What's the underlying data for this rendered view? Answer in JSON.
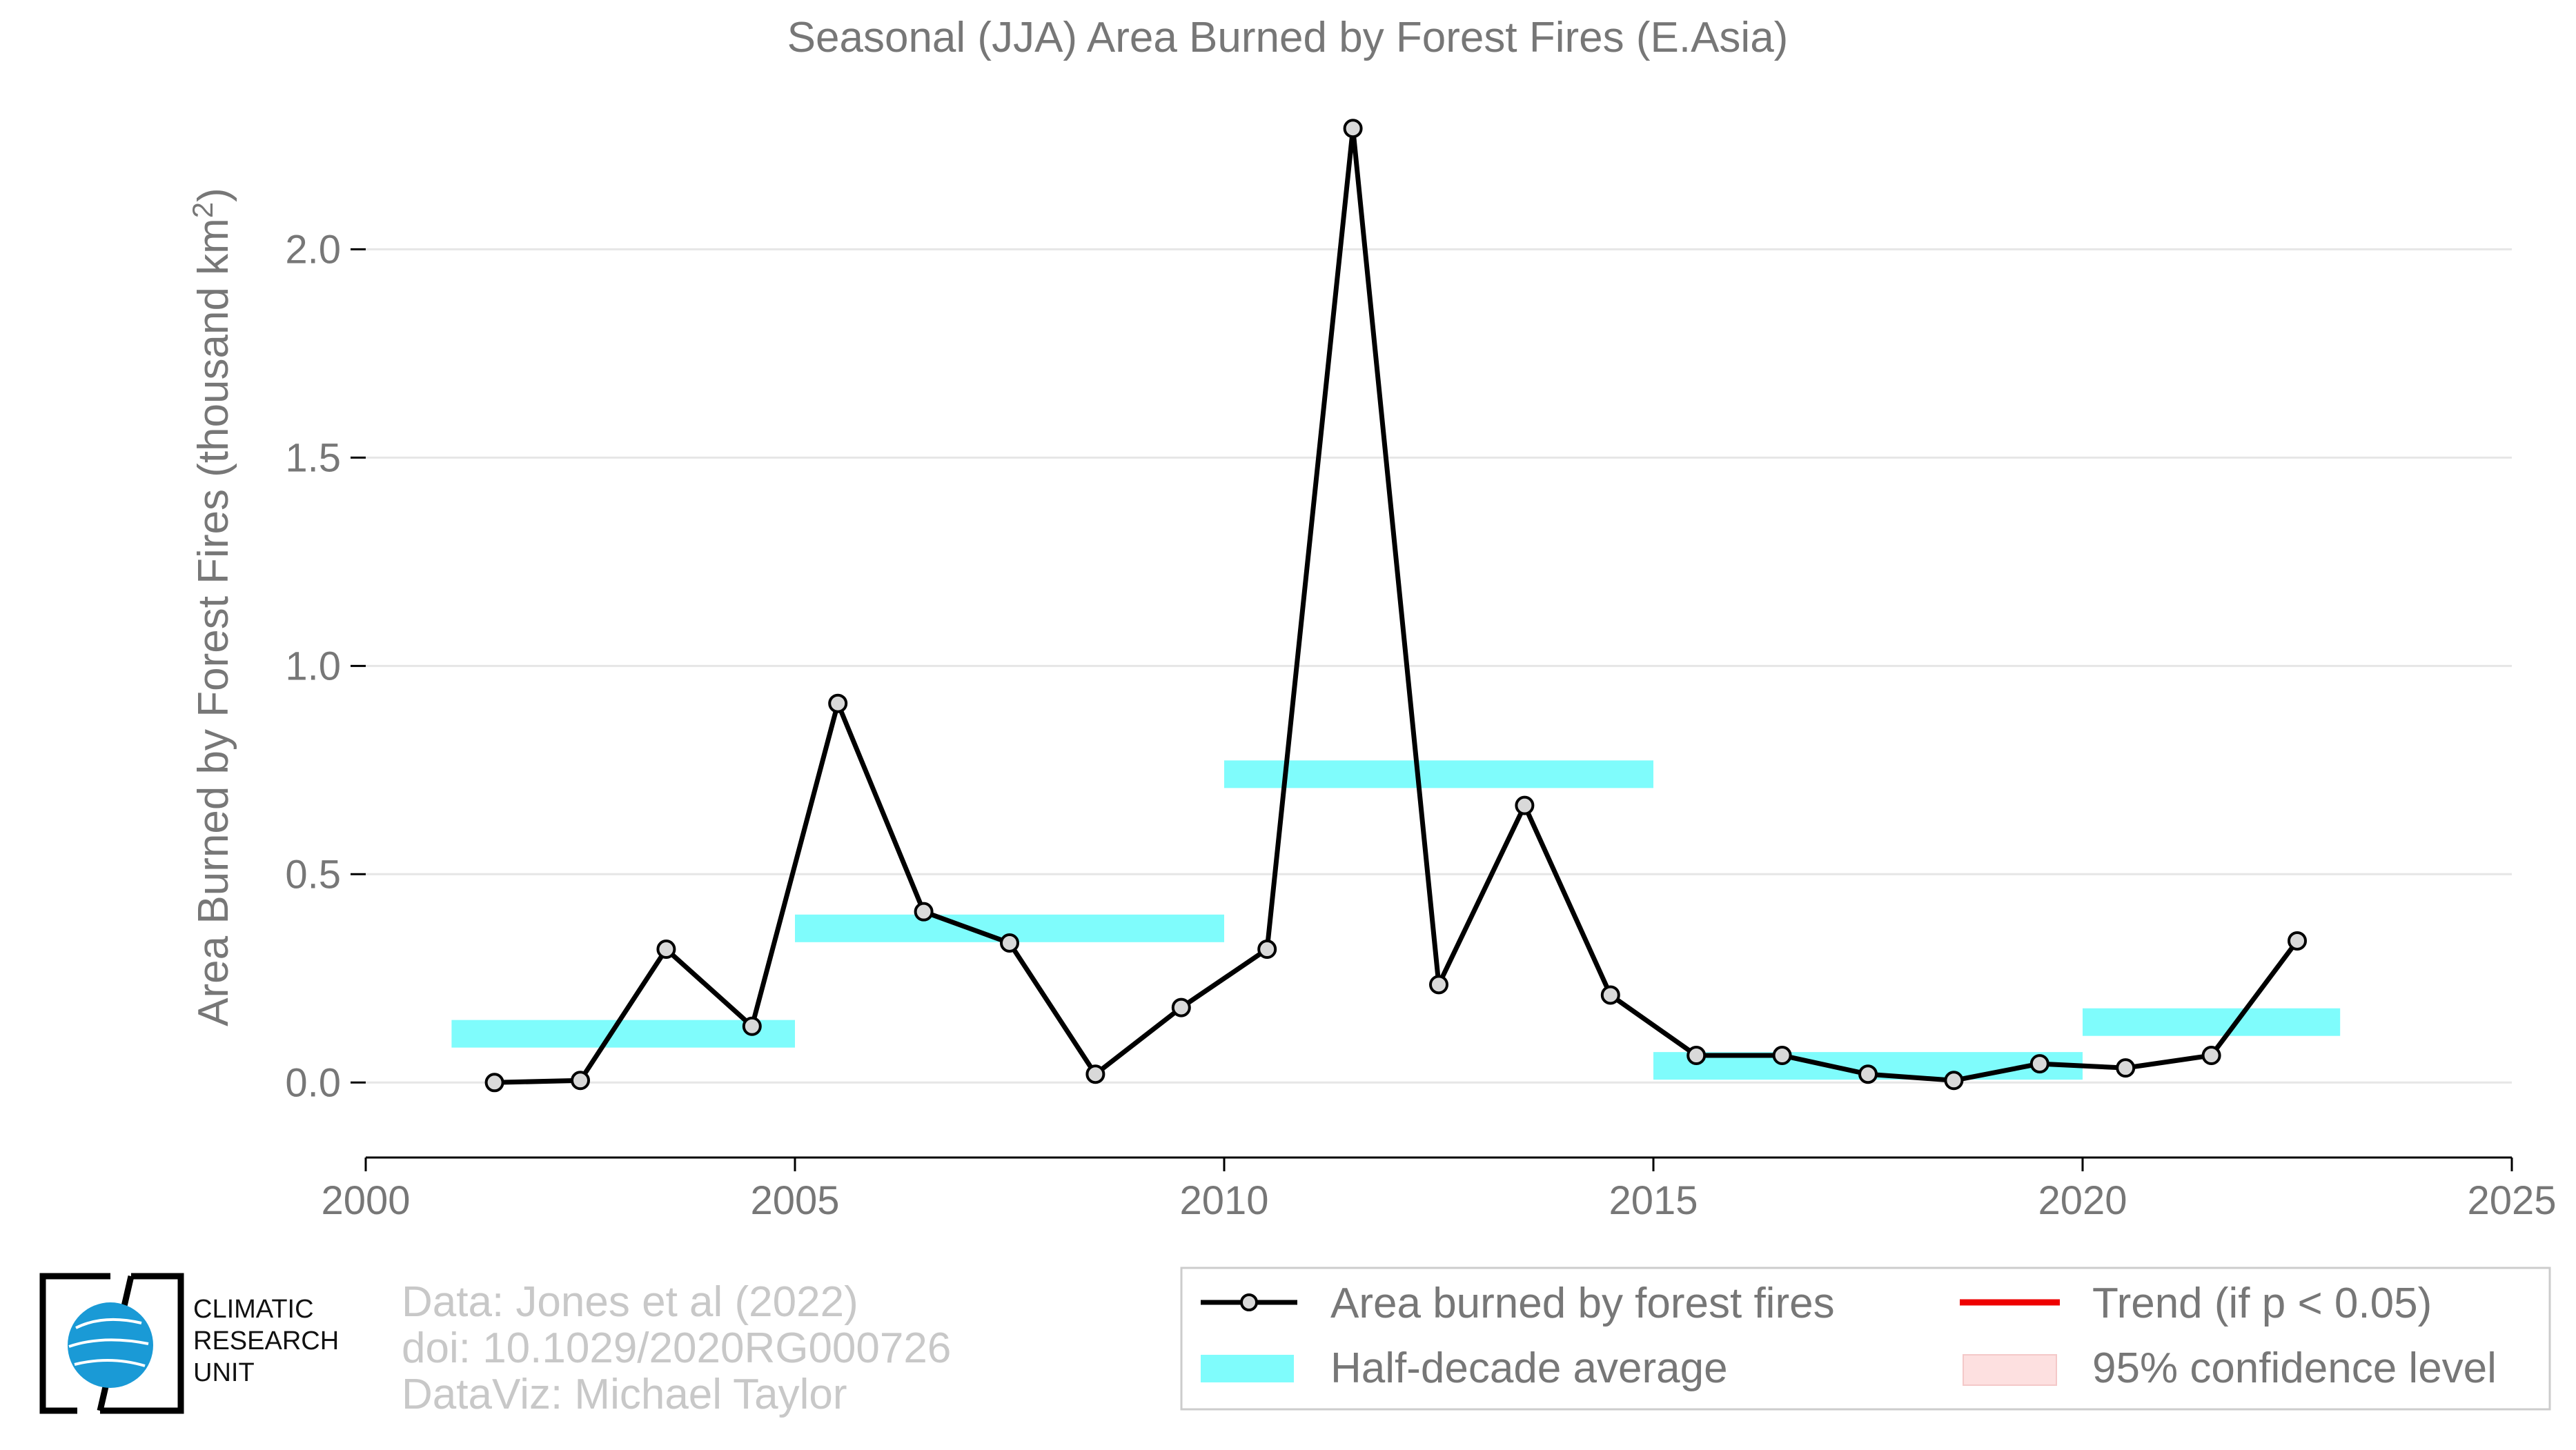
{
  "chart_data": {
    "type": "line",
    "title": "Seasonal (JJA) Area Burned by Forest Fires (E.Asia)",
    "ylabel_main": "Area Burned by Forest Fires (thousand km",
    "ylabel_sup": "2",
    "ylabel_end": ")",
    "xlim": [
      2000,
      2025
    ],
    "ylim": [
      -0.18,
      2.35
    ],
    "xticks": [
      2000,
      2005,
      2010,
      2015,
      2020,
      2025
    ],
    "yticks": [
      0.0,
      0.5,
      1.0,
      1.5,
      2.0
    ],
    "ytick_labels": [
      "0.0",
      "0.5",
      "1.0",
      "1.5",
      "2.0"
    ],
    "grid": true,
    "series": [
      {
        "name": "Area burned by forest fires",
        "x": [
          2001.5,
          2002.5,
          2003.5,
          2004.5,
          2005.5,
          2006.5,
          2007.5,
          2008.5,
          2009.5,
          2010.5,
          2011.5,
          2012.5,
          2013.5,
          2014.5,
          2015.5,
          2016.5,
          2017.5,
          2018.5,
          2019.5,
          2020.5,
          2021.5,
          2022.5
        ],
        "values": [
          0.0,
          0.005,
          0.32,
          0.135,
          0.91,
          0.41,
          0.335,
          0.02,
          0.18,
          0.32,
          2.29,
          0.235,
          0.665,
          0.21,
          0.065,
          0.065,
          0.02,
          0.005,
          0.045,
          0.035,
          0.065,
          0.34
        ]
      }
    ],
    "half_decade_averages": [
      {
        "x_start": 2001,
        "x_end": 2005,
        "value": 0.117
      },
      {
        "x_start": 2005,
        "x_end": 2010,
        "value": 0.37
      },
      {
        "x_start": 2010,
        "x_end": 2015,
        "value": 0.74
      },
      {
        "x_start": 2015,
        "x_end": 2020,
        "value": 0.04
      },
      {
        "x_start": 2020,
        "x_end": 2023,
        "value": 0.145
      }
    ],
    "legend_position": "bottom-right",
    "legend": [
      {
        "label": "Area burned by forest fires",
        "kind": "line-marker"
      },
      {
        "label": "Trend (if p < 0.05)",
        "kind": "line-red"
      },
      {
        "label": "Half-decade average",
        "kind": "band-cyan"
      },
      {
        "label": "95% confidence level",
        "kind": "band-pink"
      }
    ],
    "colors": {
      "line": "#000000",
      "marker_fill": "#d9d9d9",
      "band": "#7ffcfc",
      "trend": "#ee0000",
      "confidence": "#fde0e0",
      "grid": "#e6e6e6",
      "text": "#777777",
      "credits": "#c8c8c8",
      "logo_globe": "#1a9ad6"
    }
  },
  "credits": {
    "line1": "Data: Jones et al (2022)",
    "line2": "doi: 10.1029/2020RG000726",
    "line3": "DataViz: Michael Taylor"
  },
  "logo": {
    "line1": "CLIMATIC",
    "line2": "RESEARCH",
    "line3": "UNIT"
  }
}
